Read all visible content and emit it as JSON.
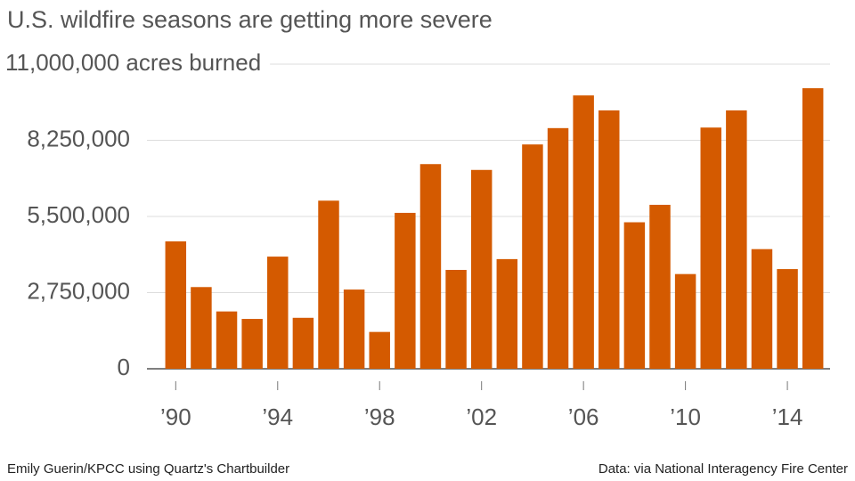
{
  "chart_data": {
    "type": "bar",
    "title": "U.S. wildfire seasons are getting more severe",
    "credit": "Emily Guerin/KPCC using Quartz's Chartbuilder",
    "source": "Data: via National Interagency Fire Center",
    "categories": [
      "’90",
      null,
      null,
      null,
      "’94",
      null,
      null,
      null,
      "’98",
      null,
      null,
      null,
      "’02",
      null,
      null,
      null,
      "’06",
      null,
      null,
      null,
      "’10",
      null,
      null,
      null,
      "’14",
      null
    ],
    "values": [
      4600000,
      2950000,
      2070000,
      1800000,
      4050000,
      1840000,
      6070000,
      2860000,
      1330000,
      5630000,
      7390000,
      3570000,
      7180000,
      3960000,
      8100000,
      8690000,
      9870000,
      9330000,
      5290000,
      5920000,
      3420000,
      8710000,
      9330000,
      4320000,
      3600000,
      10130000
    ],
    "color": "#d45a00",
    "ylim": [
      0,
      11000000
    ],
    "yticks": [
      0,
      {
        "value": 2750000,
        "label": "2,750,000"
      },
      {
        "value": 5500000,
        "label": "5,500,000"
      },
      {
        "value": 8250000,
        "label": "8,250,000"
      },
      {
        "value": 11000000,
        "label": "11,000,000 acres burned"
      }
    ],
    "grid": true
  }
}
